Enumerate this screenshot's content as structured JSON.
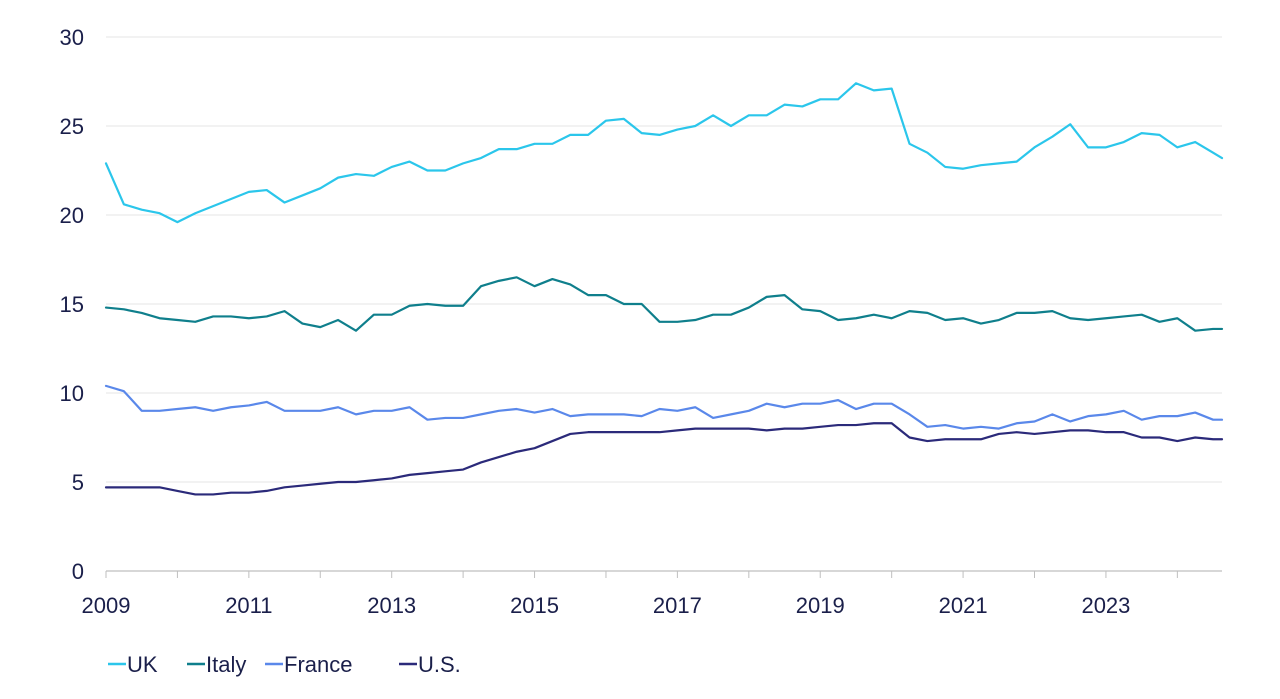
{
  "chart_data": {
    "type": "line",
    "title": "",
    "xlabel": "",
    "ylabel": "",
    "xlim": [
      2009,
      2024.625
    ],
    "ylim": [
      0,
      30
    ],
    "y_ticks": [
      0,
      5,
      10,
      15,
      20,
      25,
      30
    ],
    "x_ticks": [
      2009,
      2011,
      2013,
      2015,
      2017,
      2019,
      2021,
      2023
    ],
    "x_tick_labels": [
      "2009",
      "2011",
      "2013",
      "2015",
      "2017",
      "2019",
      "2021",
      "2023"
    ],
    "grid": true,
    "legend_position": "bottom-left",
    "x": [
      2009.0,
      2009.25,
      2009.5,
      2009.75,
      2010.0,
      2010.25,
      2010.5,
      2010.75,
      2011.0,
      2011.25,
      2011.5,
      2011.75,
      2012.0,
      2012.25,
      2012.5,
      2012.75,
      2013.0,
      2013.25,
      2013.5,
      2013.75,
      2014.0,
      2014.25,
      2014.5,
      2014.75,
      2015.0,
      2015.25,
      2015.5,
      2015.75,
      2016.0,
      2016.25,
      2016.5,
      2016.75,
      2017.0,
      2017.25,
      2017.5,
      2017.75,
      2018.0,
      2018.25,
      2018.5,
      2018.75,
      2019.0,
      2019.25,
      2019.5,
      2019.75,
      2020.0,
      2020.25,
      2020.5,
      2020.75,
      2021.0,
      2021.25,
      2021.5,
      2021.75,
      2022.0,
      2022.25,
      2022.5,
      2022.75,
      2023.0,
      2023.25,
      2023.5,
      2023.75,
      2024.0,
      2024.25,
      2024.5,
      2024.625
    ],
    "series": [
      {
        "name": "UK",
        "color": "#2bc6eb",
        "values": [
          22.9,
          20.6,
          20.3,
          20.1,
          19.6,
          20.1,
          20.5,
          20.9,
          21.3,
          21.4,
          20.7,
          21.1,
          21.5,
          22.1,
          22.3,
          22.2,
          22.7,
          23.0,
          22.5,
          22.5,
          22.9,
          23.2,
          23.7,
          23.7,
          24.0,
          24.0,
          24.5,
          24.5,
          25.3,
          25.4,
          24.6,
          24.5,
          24.8,
          25.0,
          25.6,
          25.0,
          25.6,
          25.6,
          26.2,
          26.1,
          26.5,
          26.5,
          27.4,
          27.0,
          27.1,
          24.0,
          23.5,
          22.7,
          22.6,
          22.8,
          22.9,
          23.0,
          23.8,
          24.4,
          25.1,
          23.8,
          23.8,
          24.1,
          24.6,
          24.5,
          23.8,
          24.1,
          23.5,
          23.2
        ]
      },
      {
        "name": "Italy",
        "color": "#0f7f8c",
        "values": [
          14.8,
          14.7,
          14.5,
          14.2,
          14.1,
          14.0,
          14.3,
          14.3,
          14.2,
          14.3,
          14.6,
          13.9,
          13.7,
          14.1,
          13.5,
          14.4,
          14.4,
          14.9,
          15.0,
          14.9,
          14.9,
          16.0,
          16.3,
          16.5,
          16.0,
          16.4,
          16.1,
          15.5,
          15.5,
          15.0,
          15.0,
          14.0,
          14.0,
          14.1,
          14.4,
          14.4,
          14.8,
          15.4,
          15.5,
          14.7,
          14.6,
          14.1,
          14.2,
          14.4,
          14.2,
          14.6,
          14.5,
          14.1,
          14.2,
          13.9,
          14.1,
          14.5,
          14.5,
          14.6,
          14.2,
          14.1,
          14.2,
          14.3,
          14.4,
          14.0,
          14.2,
          13.5,
          13.6,
          13.6
        ]
      },
      {
        "name": "France",
        "color": "#5a88ea",
        "values": [
          10.4,
          10.1,
          9.0,
          9.0,
          9.1,
          9.2,
          9.0,
          9.2,
          9.3,
          9.5,
          9.0,
          9.0,
          9.0,
          9.2,
          8.8,
          9.0,
          9.0,
          9.2,
          8.5,
          8.6,
          8.6,
          8.8,
          9.0,
          9.1,
          8.9,
          9.1,
          8.7,
          8.8,
          8.8,
          8.8,
          8.7,
          9.1,
          9.0,
          9.2,
          8.6,
          8.8,
          9.0,
          9.4,
          9.2,
          9.4,
          9.4,
          9.6,
          9.1,
          9.4,
          9.4,
          8.8,
          8.1,
          8.2,
          8.0,
          8.1,
          8.0,
          8.3,
          8.4,
          8.8,
          8.4,
          8.7,
          8.8,
          9.0,
          8.5,
          8.7,
          8.7,
          8.9,
          8.5,
          8.5
        ]
      },
      {
        "name": "U.S.",
        "color": "#2b2a7a",
        "values": [
          4.7,
          4.7,
          4.7,
          4.7,
          4.5,
          4.3,
          4.3,
          4.4,
          4.4,
          4.5,
          4.7,
          4.8,
          4.9,
          5.0,
          5.0,
          5.1,
          5.2,
          5.4,
          5.5,
          5.6,
          5.7,
          6.1,
          6.4,
          6.7,
          6.9,
          7.3,
          7.7,
          7.8,
          7.8,
          7.8,
          7.8,
          7.8,
          7.9,
          8.0,
          8.0,
          8.0,
          8.0,
          7.9,
          8.0,
          8.0,
          8.1,
          8.2,
          8.2,
          8.3,
          8.3,
          7.5,
          7.3,
          7.4,
          7.4,
          7.4,
          7.7,
          7.8,
          7.7,
          7.8,
          7.9,
          7.9,
          7.8,
          7.8,
          7.5,
          7.5,
          7.3,
          7.5,
          7.4,
          7.4
        ]
      }
    ]
  }
}
